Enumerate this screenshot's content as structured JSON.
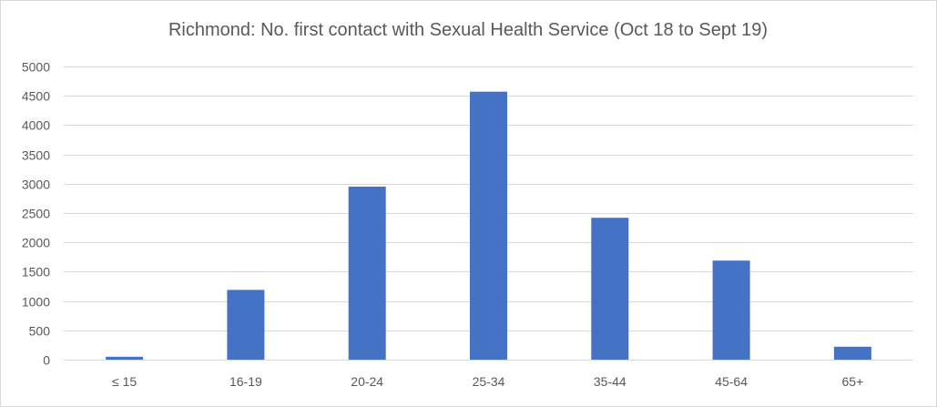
{
  "chart_data": {
    "type": "bar",
    "title": "Richmond:  No. first contact  with Sexual Health Service (Oct 18 to Sept 19)",
    "xlabel": "",
    "ylabel": "",
    "categories": [
      "≤ 15",
      "16-19",
      "20-24",
      "25-34",
      "35-44",
      "45-64",
      "65+"
    ],
    "values": [
      50,
      1190,
      2950,
      4570,
      2420,
      1690,
      220
    ],
    "ylim": [
      0,
      5000
    ],
    "yticks": [
      0,
      500,
      1000,
      1500,
      2000,
      2500,
      3000,
      3500,
      4000,
      4500,
      5000
    ],
    "grid": true,
    "legend": "none",
    "colors": {
      "bar": "#4472c4",
      "gridline": "#d9d9d9",
      "axis_text": "#595959"
    }
  }
}
